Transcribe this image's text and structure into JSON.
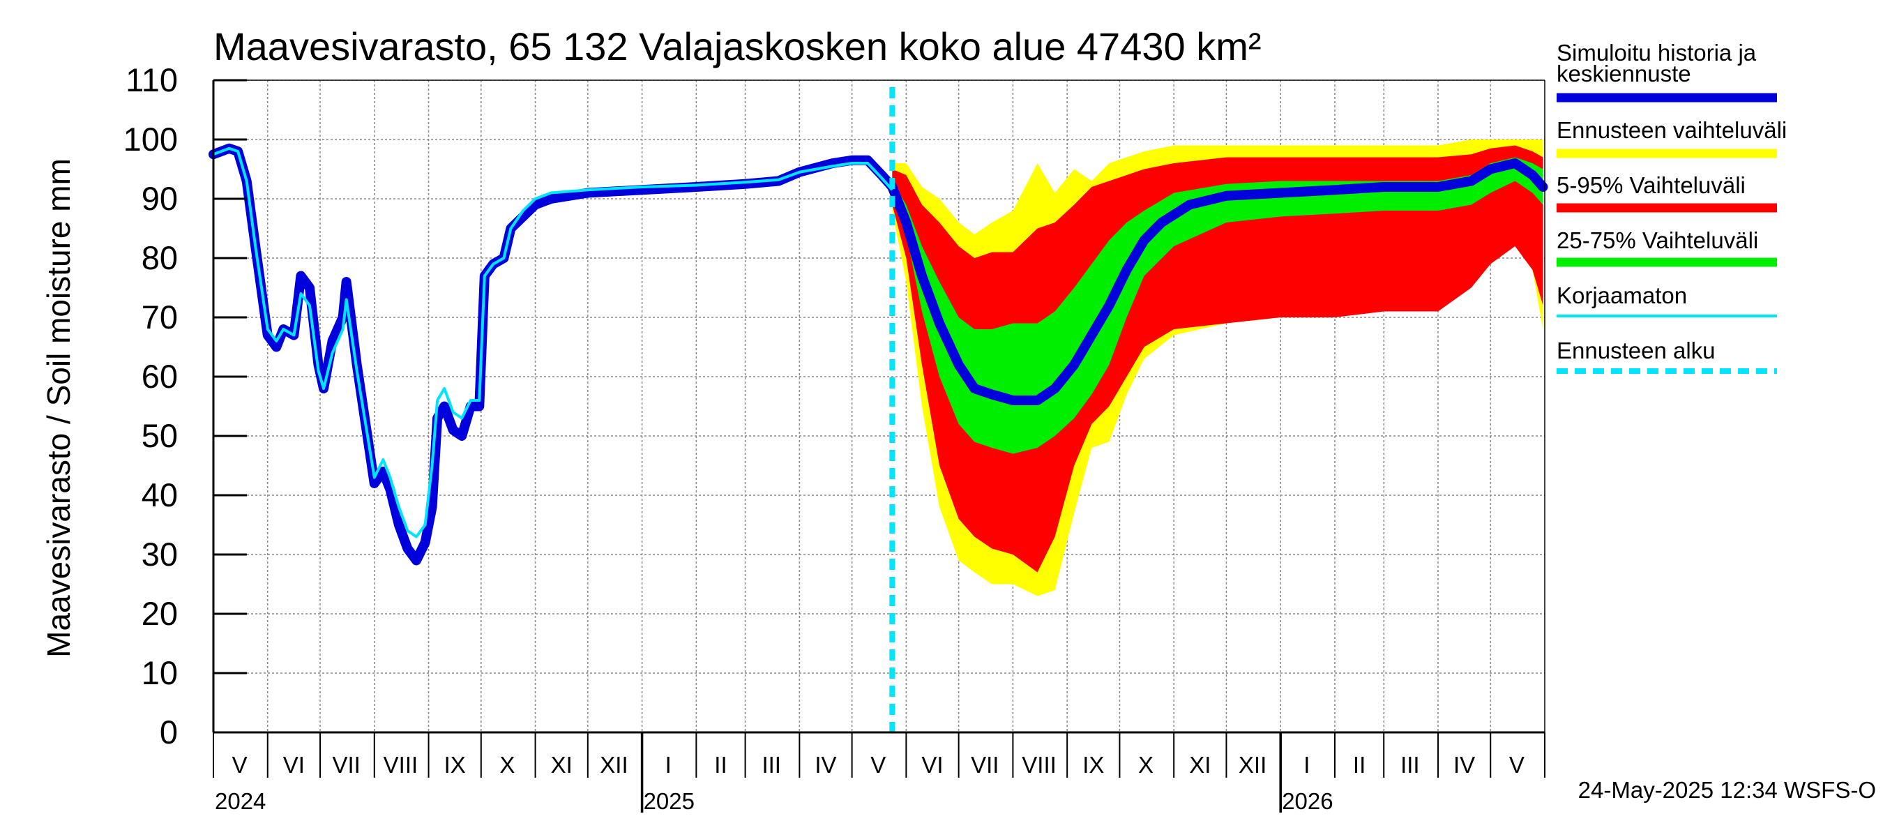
{
  "chart_data": {
    "type": "area",
    "title": "Maavesivarasto, 65 132 Valajaskosken koko alue 47430 km²",
    "ylabel": "Maavesivarasto / Soil moisture   mm",
    "ylim": [
      0,
      110
    ],
    "y_ticks": [
      "0",
      "10",
      "20",
      "30",
      "40",
      "50",
      "60",
      "70",
      "80",
      "90",
      "100",
      "110"
    ],
    "x_range": [
      "2024-05-01",
      "2026-05-31"
    ],
    "x_month_labels": [
      {
        "label": "V",
        "date": "2024-05-16"
      },
      {
        "label": "VI",
        "date": "2024-06-16"
      },
      {
        "label": "VII",
        "date": "2024-07-16"
      },
      {
        "label": "VIII",
        "date": "2024-08-16"
      },
      {
        "label": "IX",
        "date": "2024-09-16"
      },
      {
        "label": "X",
        "date": "2024-10-16"
      },
      {
        "label": "XI",
        "date": "2024-11-16"
      },
      {
        "label": "XII",
        "date": "2024-12-16"
      },
      {
        "label": "I",
        "date": "2025-01-16"
      },
      {
        "label": "II",
        "date": "2025-02-15"
      },
      {
        "label": "III",
        "date": "2025-03-16"
      },
      {
        "label": "IV",
        "date": "2025-04-16"
      },
      {
        "label": "V",
        "date": "2025-05-16"
      },
      {
        "label": "VI",
        "date": "2025-06-16"
      },
      {
        "label": "VII",
        "date": "2025-07-16"
      },
      {
        "label": "VIII",
        "date": "2025-08-16"
      },
      {
        "label": "IX",
        "date": "2025-09-16"
      },
      {
        "label": "X",
        "date": "2025-10-16"
      },
      {
        "label": "XI",
        "date": "2025-11-16"
      },
      {
        "label": "XII",
        "date": "2025-12-16"
      },
      {
        "label": "I",
        "date": "2026-01-16"
      },
      {
        "label": "II",
        "date": "2026-02-15"
      },
      {
        "label": "III",
        "date": "2026-03-16"
      },
      {
        "label": "IV",
        "date": "2026-04-16"
      },
      {
        "label": "V",
        "date": "2026-05-16"
      }
    ],
    "x_year_labels": [
      {
        "label": "2024",
        "date": "2024-05-01"
      },
      {
        "label": "2025",
        "date": "2025-01-01"
      },
      {
        "label": "2026",
        "date": "2026-01-01"
      }
    ],
    "forecast_start": "2025-05-24",
    "legend_position": "right",
    "grid": true,
    "series": [
      {
        "name": "Simuloitu historia ja keskiennuste",
        "color": "#0000dd",
        "points": [
          [
            "2024-05-01",
            97.5
          ],
          [
            "2024-05-10",
            98.5
          ],
          [
            "2024-05-15",
            98
          ],
          [
            "2024-05-20",
            93
          ],
          [
            "2024-05-25",
            82
          ],
          [
            "2024-06-01",
            67
          ],
          [
            "2024-06-06",
            65
          ],
          [
            "2024-06-10",
            68
          ],
          [
            "2024-06-16",
            67
          ],
          [
            "2024-06-20",
            77
          ],
          [
            "2024-06-25",
            75
          ],
          [
            "2024-06-30",
            62
          ],
          [
            "2024-07-03",
            58
          ],
          [
            "2024-07-08",
            66
          ],
          [
            "2024-07-14",
            70
          ],
          [
            "2024-07-16",
            76
          ],
          [
            "2024-07-22",
            62
          ],
          [
            "2024-07-27",
            52
          ],
          [
            "2024-08-01",
            42
          ],
          [
            "2024-08-06",
            44
          ],
          [
            "2024-08-10",
            41
          ],
          [
            "2024-08-15",
            35
          ],
          [
            "2024-08-20",
            31
          ],
          [
            "2024-08-25",
            29
          ],
          [
            "2024-08-30",
            32
          ],
          [
            "2024-09-03",
            38
          ],
          [
            "2024-09-06",
            53
          ],
          [
            "2024-09-10",
            55
          ],
          [
            "2024-09-15",
            51
          ],
          [
            "2024-09-20",
            50
          ],
          [
            "2024-09-25",
            55
          ],
          [
            "2024-09-30",
            55
          ],
          [
            "2024-10-03",
            77
          ],
          [
            "2024-10-08",
            79
          ],
          [
            "2024-10-14",
            80
          ],
          [
            "2024-10-18",
            85
          ],
          [
            "2024-10-25",
            87
          ],
          [
            "2024-11-01",
            89
          ],
          [
            "2024-11-10",
            90
          ],
          [
            "2024-12-01",
            91
          ],
          [
            "2025-01-01",
            91.5
          ],
          [
            "2025-02-01",
            92
          ],
          [
            "2025-03-01",
            92.5
          ],
          [
            "2025-03-20",
            93
          ],
          [
            "2025-04-01",
            94.5
          ],
          [
            "2025-04-20",
            96
          ],
          [
            "2025-05-01",
            96.5
          ],
          [
            "2025-05-10",
            96.5
          ],
          [
            "2025-05-18",
            94
          ],
          [
            "2025-05-24",
            92
          ],
          [
            "2025-06-01",
            86
          ],
          [
            "2025-06-10",
            77
          ],
          [
            "2025-06-20",
            69
          ],
          [
            "2025-07-01",
            62
          ],
          [
            "2025-07-10",
            58
          ],
          [
            "2025-07-20",
            57
          ],
          [
            "2025-08-01",
            56
          ],
          [
            "2025-08-15",
            56
          ],
          [
            "2025-08-25",
            58
          ],
          [
            "2025-09-05",
            62
          ],
          [
            "2025-09-15",
            67
          ],
          [
            "2025-09-25",
            72
          ],
          [
            "2025-10-05",
            78
          ],
          [
            "2025-10-15",
            83
          ],
          [
            "2025-10-25",
            86
          ],
          [
            "2025-11-10",
            89
          ],
          [
            "2025-12-01",
            90.5
          ],
          [
            "2026-01-01",
            91
          ],
          [
            "2026-02-01",
            91.5
          ],
          [
            "2026-03-01",
            92
          ],
          [
            "2026-04-01",
            92
          ],
          [
            "2026-04-20",
            93
          ],
          [
            "2026-05-01",
            95
          ],
          [
            "2026-05-15",
            96
          ],
          [
            "2026-05-25",
            94
          ],
          [
            "2026-05-31",
            92
          ]
        ]
      },
      {
        "name": "Ennusteen vaihteluväli",
        "color": "#ffff00",
        "band": [
          [
            "2025-05-24",
            96,
            88
          ],
          [
            "2025-06-01",
            96,
            76
          ],
          [
            "2025-06-10",
            92,
            55
          ],
          [
            "2025-06-20",
            90,
            38
          ],
          [
            "2025-07-01",
            86,
            29
          ],
          [
            "2025-07-10",
            84,
            27
          ],
          [
            "2025-07-20",
            86,
            25
          ],
          [
            "2025-08-01",
            88,
            25
          ],
          [
            "2025-08-15",
            96,
            23
          ],
          [
            "2025-08-25",
            91,
            24
          ],
          [
            "2025-09-05",
            95,
            37
          ],
          [
            "2025-09-15",
            93,
            48
          ],
          [
            "2025-09-25",
            96,
            49
          ],
          [
            "2025-10-05",
            97,
            57
          ],
          [
            "2025-10-15",
            98,
            63
          ],
          [
            "2025-11-01",
            99,
            67
          ],
          [
            "2025-12-01",
            99,
            69
          ],
          [
            "2026-01-01",
            99,
            70
          ],
          [
            "2026-02-01",
            99,
            70.5
          ],
          [
            "2026-03-01",
            99,
            71
          ],
          [
            "2026-04-01",
            99,
            71
          ],
          [
            "2026-04-20",
            100,
            76
          ],
          [
            "2026-05-01",
            100,
            80
          ],
          [
            "2026-05-15",
            100,
            84
          ],
          [
            "2026-05-25",
            100,
            78
          ],
          [
            "2026-05-31",
            100,
            68
          ]
        ]
      },
      {
        "name": "5-95% Vaihteluväli",
        "color": "#ff0000",
        "band": [
          [
            "2025-05-24",
            95,
            89
          ],
          [
            "2025-06-01",
            94,
            80
          ],
          [
            "2025-06-10",
            89,
            62
          ],
          [
            "2025-06-20",
            86,
            45
          ],
          [
            "2025-07-01",
            82,
            36
          ],
          [
            "2025-07-10",
            80,
            33
          ],
          [
            "2025-07-20",
            81,
            31
          ],
          [
            "2025-08-01",
            81,
            30
          ],
          [
            "2025-08-15",
            85,
            27
          ],
          [
            "2025-08-25",
            86,
            33
          ],
          [
            "2025-09-05",
            89,
            45
          ],
          [
            "2025-09-15",
            92,
            52
          ],
          [
            "2025-09-25",
            93,
            55
          ],
          [
            "2025-10-05",
            94,
            60
          ],
          [
            "2025-10-15",
            95,
            65
          ],
          [
            "2025-11-01",
            96,
            68
          ],
          [
            "2025-12-01",
            97,
            69
          ],
          [
            "2026-01-01",
            97,
            70
          ],
          [
            "2026-02-01",
            97,
            70
          ],
          [
            "2026-03-01",
            97,
            71
          ],
          [
            "2026-04-01",
            97,
            71
          ],
          [
            "2026-04-20",
            97.5,
            75
          ],
          [
            "2026-05-01",
            98.5,
            79
          ],
          [
            "2026-05-15",
            99,
            82
          ],
          [
            "2026-05-25",
            98,
            78
          ],
          [
            "2026-05-31",
            97,
            72
          ]
        ]
      },
      {
        "name": "25-75% Vaihteluväli",
        "color": "#00ee00",
        "band": [
          [
            "2025-05-24",
            93,
            91
          ],
          [
            "2025-06-01",
            89,
            84
          ],
          [
            "2025-06-10",
            82,
            71
          ],
          [
            "2025-06-20",
            76,
            60
          ],
          [
            "2025-07-01",
            70,
            52
          ],
          [
            "2025-07-10",
            68,
            49
          ],
          [
            "2025-07-20",
            68,
            48
          ],
          [
            "2025-08-01",
            69,
            47
          ],
          [
            "2025-08-15",
            69,
            48
          ],
          [
            "2025-08-25",
            71,
            50
          ],
          [
            "2025-09-05",
            75,
            53
          ],
          [
            "2025-09-15",
            79,
            57
          ],
          [
            "2025-09-25",
            83,
            62
          ],
          [
            "2025-10-05",
            86,
            70
          ],
          [
            "2025-10-15",
            88,
            77
          ],
          [
            "2025-11-01",
            91,
            82
          ],
          [
            "2025-12-01",
            92.5,
            86
          ],
          [
            "2026-01-01",
            93,
            87
          ],
          [
            "2026-02-01",
            93,
            87.5
          ],
          [
            "2026-03-01",
            93,
            88
          ],
          [
            "2026-04-01",
            93,
            88
          ],
          [
            "2026-04-20",
            94,
            89
          ],
          [
            "2026-05-01",
            96,
            91
          ],
          [
            "2026-05-15",
            97,
            93
          ],
          [
            "2026-05-25",
            96,
            91
          ],
          [
            "2026-05-31",
            95,
            89
          ]
        ]
      },
      {
        "name": "Korjaamaton",
        "color": "#00e5ff",
        "points": [
          [
            "2024-05-01",
            97.5
          ],
          [
            "2024-05-10",
            98.5
          ],
          [
            "2024-05-15",
            98
          ],
          [
            "2024-05-20",
            93
          ],
          [
            "2024-05-25",
            82
          ],
          [
            "2024-06-01",
            68
          ],
          [
            "2024-06-06",
            66
          ],
          [
            "2024-06-10",
            68
          ],
          [
            "2024-06-16",
            67
          ],
          [
            "2024-06-20",
            74
          ],
          [
            "2024-06-25",
            72
          ],
          [
            "2024-06-30",
            61
          ],
          [
            "2024-07-03",
            58
          ],
          [
            "2024-07-08",
            64
          ],
          [
            "2024-07-14",
            68
          ],
          [
            "2024-07-16",
            73
          ],
          [
            "2024-07-22",
            61
          ],
          [
            "2024-07-27",
            52
          ],
          [
            "2024-08-01",
            43
          ],
          [
            "2024-08-06",
            46
          ],
          [
            "2024-08-10",
            43
          ],
          [
            "2024-08-15",
            38
          ],
          [
            "2024-08-20",
            34
          ],
          [
            "2024-08-25",
            33
          ],
          [
            "2024-08-30",
            35
          ],
          [
            "2024-09-03",
            45
          ],
          [
            "2024-09-06",
            56
          ],
          [
            "2024-09-10",
            58
          ],
          [
            "2024-09-15",
            54
          ],
          [
            "2024-09-20",
            53
          ],
          [
            "2024-09-25",
            56
          ],
          [
            "2024-09-30",
            56
          ],
          [
            "2024-10-03",
            77
          ],
          [
            "2024-10-08",
            79
          ],
          [
            "2024-10-14",
            80
          ],
          [
            "2024-10-18",
            85
          ],
          [
            "2024-10-25",
            88
          ],
          [
            "2024-11-01",
            90
          ],
          [
            "2024-11-10",
            91
          ],
          [
            "2024-12-01",
            91.5
          ],
          [
            "2025-01-01",
            92
          ],
          [
            "2025-02-01",
            92.3
          ],
          [
            "2025-03-01",
            92.8
          ],
          [
            "2025-03-20",
            93.2
          ],
          [
            "2025-04-01",
            94.5
          ],
          [
            "2025-04-20",
            95.5
          ],
          [
            "2025-05-01",
            96
          ],
          [
            "2025-05-10",
            96
          ],
          [
            "2025-05-18",
            93.5
          ],
          [
            "2025-05-24",
            91.5
          ]
        ]
      }
    ]
  },
  "legend": {
    "entries": [
      {
        "label": "Simuloitu historia ja keskiennuste",
        "color": "#0000dd",
        "style": "thick"
      },
      {
        "label": "Ennusteen vaihteluväli",
        "color": "#ffff00",
        "style": "thick"
      },
      {
        "label": "5-95% Vaihteluväli",
        "color": "#ff0000",
        "style": "thick"
      },
      {
        "label": "25-75% Vaihteluväli",
        "color": "#00ee00",
        "style": "thick"
      },
      {
        "label": "Korjaamaton",
        "color": "#00e5ff",
        "style": "thin"
      },
      {
        "label": "Ennusteen alku",
        "color": "#00e5ff",
        "style": "dashed"
      }
    ]
  },
  "footer": "24-May-2025 12:34 WSFS-O"
}
